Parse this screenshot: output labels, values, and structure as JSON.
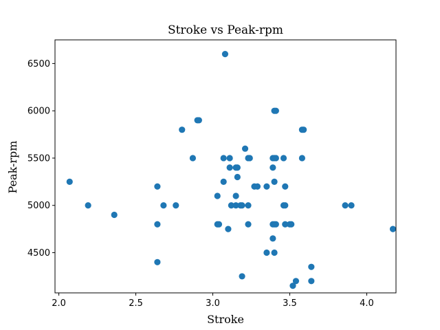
{
  "chart_data": {
    "type": "scatter",
    "title": "Stroke vs Peak-rpm",
    "xlabel": "Stroke",
    "ylabel": "Peak-rpm",
    "xlim": [
      1.975,
      4.19
    ],
    "ylim": [
      4075,
      6750
    ],
    "xticks": [
      "2.0",
      "2.5",
      "3.0",
      "3.5",
      "4.0"
    ],
    "yticks": [
      "4500",
      "5000",
      "5500",
      "6000",
      "6500"
    ],
    "xtick_values": [
      2.0,
      2.5,
      3.0,
      3.5,
      4.0
    ],
    "ytick_values": [
      4500,
      5000,
      5500,
      6000,
      6500
    ],
    "grid": false,
    "marker_color": "#1f77b4",
    "series": [
      {
        "points": [
          [
            3.08,
            6600
          ],
          [
            3.41,
            6000
          ],
          [
            3.4,
            6000
          ],
          [
            2.8,
            5800
          ],
          [
            3.58,
            5800
          ],
          [
            3.59,
            5800
          ],
          [
            2.9,
            5900
          ],
          [
            2.91,
            5900
          ],
          [
            2.87,
            5500
          ],
          [
            3.07,
            5500
          ],
          [
            3.11,
            5500
          ],
          [
            3.23,
            5500
          ],
          [
            3.24,
            5500
          ],
          [
            3.39,
            5500
          ],
          [
            3.4,
            5500
          ],
          [
            3.41,
            5500
          ],
          [
            3.46,
            5500
          ],
          [
            3.58,
            5500
          ],
          [
            3.21,
            5600
          ],
          [
            3.11,
            5400
          ],
          [
            3.15,
            5400
          ],
          [
            3.16,
            5400
          ],
          [
            3.39,
            5400
          ],
          [
            3.16,
            5300
          ],
          [
            2.07,
            5250
          ],
          [
            3.07,
            5250
          ],
          [
            3.4,
            5250
          ],
          [
            2.64,
            5200
          ],
          [
            3.27,
            5200
          ],
          [
            3.29,
            5200
          ],
          [
            3.35,
            5200
          ],
          [
            3.47,
            5200
          ],
          [
            3.03,
            5100
          ],
          [
            3.15,
            5100
          ],
          [
            2.19,
            5000
          ],
          [
            2.68,
            5000
          ],
          [
            2.76,
            5000
          ],
          [
            3.12,
            5000
          ],
          [
            3.15,
            5000
          ],
          [
            3.18,
            5000
          ],
          [
            3.19,
            5000
          ],
          [
            3.23,
            5000
          ],
          [
            3.46,
            5000
          ],
          [
            3.47,
            5000
          ],
          [
            3.86,
            5000
          ],
          [
            3.9,
            5000
          ],
          [
            2.36,
            4900
          ],
          [
            2.64,
            4800
          ],
          [
            3.03,
            4800
          ],
          [
            3.04,
            4800
          ],
          [
            3.23,
            4800
          ],
          [
            3.39,
            4800
          ],
          [
            3.4,
            4800
          ],
          [
            3.41,
            4800
          ],
          [
            3.47,
            4800
          ],
          [
            3.5,
            4800
          ],
          [
            3.51,
            4800
          ],
          [
            3.1,
            4750
          ],
          [
            4.17,
            4750
          ],
          [
            3.39,
            4650
          ],
          [
            3.35,
            4500
          ],
          [
            3.4,
            4500
          ],
          [
            2.64,
            4400
          ],
          [
            3.64,
            4350
          ],
          [
            3.19,
            4250
          ],
          [
            3.54,
            4200
          ],
          [
            3.64,
            4200
          ],
          [
            3.52,
            4150
          ]
        ]
      }
    ]
  }
}
